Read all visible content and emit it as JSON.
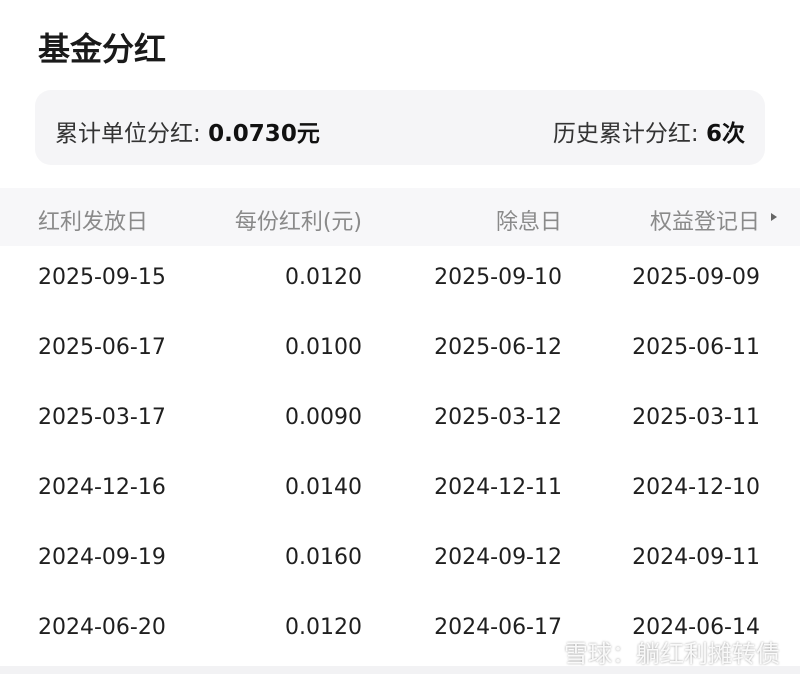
{
  "header": {
    "title": "基金分红"
  },
  "summary": {
    "unit_label": "累计单位分红:",
    "unit_value": "0.0730元",
    "count_label": "历史累计分红:",
    "count_value": "6次"
  },
  "table": {
    "columns": [
      "红利发放日",
      "每份红利(元)",
      "除息日",
      "权益登记日"
    ],
    "rows": [
      [
        "2025-09-15",
        "0.0120",
        "2025-09-10",
        "2025-09-09"
      ],
      [
        "2025-06-17",
        "0.0100",
        "2025-06-12",
        "2025-06-11"
      ],
      [
        "2025-03-17",
        "0.0090",
        "2025-03-12",
        "2025-03-11"
      ],
      [
        "2024-12-16",
        "0.0140",
        "2024-12-11",
        "2024-12-10"
      ],
      [
        "2024-09-19",
        "0.0160",
        "2024-09-12",
        "2024-09-11"
      ],
      [
        "2024-06-20",
        "0.0120",
        "2024-06-17",
        "2024-06-14"
      ]
    ]
  },
  "watermark": "雪球：躺红利摊转债"
}
